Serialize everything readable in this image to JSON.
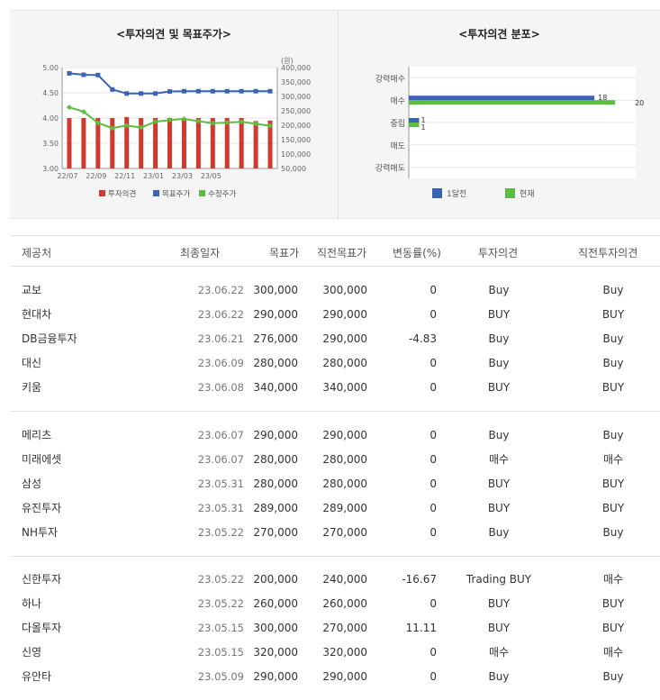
{
  "chart_data": [
    {
      "type": "bar",
      "title": "<투자의견 및 목표주가>",
      "x_labels": [
        "22/07",
        "22/09",
        "22/11",
        "23/01",
        "23/03",
        "23/05"
      ],
      "x_count": 15,
      "y_left": {
        "min": 3.0,
        "max": 5.0,
        "ticks": [
          "5.00",
          "4.50",
          "4.00",
          "3.50",
          "3.00"
        ]
      },
      "y_right": {
        "unit": "(원)",
        "min": 50000,
        "max": 400000,
        "ticks": [
          "400,000",
          "350,000",
          "300,000",
          "250,000",
          "200,000",
          "150,000",
          "100,000",
          "50,000"
        ]
      },
      "series": [
        {
          "name": "투자의견",
          "kind": "bar",
          "axis": "left",
          "color": "#d03a2c",
          "values": [
            4.0,
            4.0,
            4.0,
            4.0,
            4.02,
            4.0,
            4.0,
            4.0,
            4.0,
            4.0,
            4.0,
            4.0,
            4.0,
            3.94,
            3.95
          ]
        },
        {
          "name": "목표주가",
          "kind": "line",
          "axis": "right",
          "color": "#3a62b5",
          "values": [
            380000,
            375000,
            374000,
            324000,
            310000,
            310000,
            310000,
            317000,
            318000,
            318000,
            318000,
            318000,
            318000,
            318000,
            318000
          ]
        },
        {
          "name": "수정주가",
          "kind": "line",
          "axis": "right",
          "color": "#5cbd40",
          "values": [
            262000,
            247000,
            208000,
            190000,
            199000,
            192000,
            212000,
            218000,
            222000,
            214000,
            207000,
            209000,
            212000,
            205000,
            198000
          ]
        }
      ],
      "legend_position": "bottom"
    },
    {
      "type": "bar",
      "orientation": "horizontal",
      "title": "<투자의견 분포>",
      "categories": [
        "강력매수",
        "매수",
        "중립",
        "매도",
        "강력매도"
      ],
      "series": [
        {
          "name": "1달전",
          "color": "#3a62b5",
          "values": [
            0,
            18,
            1,
            0,
            0
          ]
        },
        {
          "name": "현재",
          "color": "#5cbd40",
          "values": [
            0,
            20,
            1,
            0,
            0
          ]
        }
      ],
      "legend_position": "bottom"
    }
  ],
  "table": {
    "headers": [
      "제공처",
      "최종일자",
      "목표가",
      "직전목표가",
      "변동률(%)",
      "투자의견",
      "직전투자의견"
    ],
    "groups": [
      [
        {
          "name": "교보",
          "date": "23.06.22",
          "target": "300,000",
          "prev_target": "300,000",
          "change": "0",
          "opinion": "Buy",
          "prev_opinion": "Buy"
        },
        {
          "name": "현대차",
          "date": "23.06.22",
          "target": "290,000",
          "prev_target": "290,000",
          "change": "0",
          "opinion": "BUY",
          "prev_opinion": "BUY"
        },
        {
          "name": "DB금융투자",
          "date": "23.06.21",
          "target": "276,000",
          "prev_target": "290,000",
          "change": "-4.83",
          "opinion": "Buy",
          "prev_opinion": "Buy"
        },
        {
          "name": "대신",
          "date": "23.06.09",
          "target": "280,000",
          "prev_target": "280,000",
          "change": "0",
          "opinion": "Buy",
          "prev_opinion": "Buy"
        },
        {
          "name": "키움",
          "date": "23.06.08",
          "target": "340,000",
          "prev_target": "340,000",
          "change": "0",
          "opinion": "BUY",
          "prev_opinion": "BUY"
        }
      ],
      [
        {
          "name": "메리츠",
          "date": "23.06.07",
          "target": "290,000",
          "prev_target": "290,000",
          "change": "0",
          "opinion": "Buy",
          "prev_opinion": "Buy"
        },
        {
          "name": "미래에셋",
          "date": "23.06.07",
          "target": "280,000",
          "prev_target": "280,000",
          "change": "0",
          "opinion": "매수",
          "prev_opinion": "매수"
        },
        {
          "name": "삼성",
          "date": "23.05.31",
          "target": "280,000",
          "prev_target": "280,000",
          "change": "0",
          "opinion": "BUY",
          "prev_opinion": "BUY"
        },
        {
          "name": "유진투자",
          "date": "23.05.31",
          "target": "289,000",
          "prev_target": "289,000",
          "change": "0",
          "opinion": "BUY",
          "prev_opinion": "BUY"
        },
        {
          "name": "NH투자",
          "date": "23.05.22",
          "target": "270,000",
          "prev_target": "270,000",
          "change": "0",
          "opinion": "Buy",
          "prev_opinion": "Buy"
        }
      ],
      [
        {
          "name": "신한투자",
          "date": "23.05.22",
          "target": "200,000",
          "prev_target": "240,000",
          "change": "-16.67",
          "opinion": "Trading BUY",
          "prev_opinion": "매수"
        },
        {
          "name": "하나",
          "date": "23.05.22",
          "target": "260,000",
          "prev_target": "260,000",
          "change": "0",
          "opinion": "BUY",
          "prev_opinion": "BUY"
        },
        {
          "name": "다올투자",
          "date": "23.05.15",
          "target": "300,000",
          "prev_target": "270,000",
          "change": "11.11",
          "opinion": "BUY",
          "prev_opinion": "BUY"
        },
        {
          "name": "신영",
          "date": "23.05.15",
          "target": "320,000",
          "prev_target": "320,000",
          "change": "0",
          "opinion": "매수",
          "prev_opinion": "매수"
        },
        {
          "name": "유안타",
          "date": "23.05.09",
          "target": "290,000",
          "prev_target": "290,000",
          "change": "0",
          "opinion": "Buy",
          "prev_opinion": "Buy"
        }
      ]
    ]
  }
}
